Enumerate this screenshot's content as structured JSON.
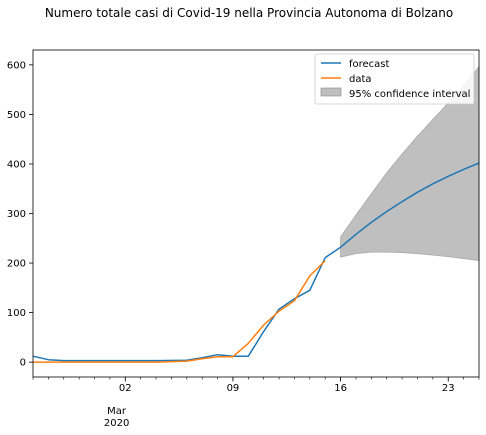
{
  "chart_data": {
    "type": "line",
    "title": "Numero totale casi di Covid-19 nella Provincia Autonoma di Bolzano",
    "xlabel": "",
    "ylabel": "",
    "x_range": [
      "2020-02-25",
      "2020-03-25"
    ],
    "ylim": [
      -30,
      630
    ],
    "y_ticks": [
      0,
      100,
      200,
      300,
      400,
      500,
      600
    ],
    "x_ticks": [
      {
        "date": "2020-03-02",
        "label": "02"
      },
      {
        "date": "2020-03-09",
        "label": "09"
      },
      {
        "date": "2020-03-16",
        "label": "16"
      },
      {
        "date": "2020-03-23",
        "label": "23"
      }
    ],
    "x_month_label": "Mar",
    "x_year_label": "2020",
    "grid": false,
    "legend_position": "top-right",
    "series": [
      {
        "name": "forecast",
        "color": "#1f77b4",
        "points": [
          {
            "date": "2020-02-25",
            "y": 12
          },
          {
            "date": "2020-02-26",
            "y": 5
          },
          {
            "date": "2020-02-27",
            "y": 3
          },
          {
            "date": "2020-02-28",
            "y": 3
          },
          {
            "date": "2020-03-01",
            "y": 3
          },
          {
            "date": "2020-03-04",
            "y": 3
          },
          {
            "date": "2020-03-06",
            "y": 4
          },
          {
            "date": "2020-03-07",
            "y": 9
          },
          {
            "date": "2020-03-08",
            "y": 15
          },
          {
            "date": "2020-03-09",
            "y": 12
          },
          {
            "date": "2020-03-10",
            "y": 12
          },
          {
            "date": "2020-03-11",
            "y": 62
          },
          {
            "date": "2020-03-12",
            "y": 107
          },
          {
            "date": "2020-03-13",
            "y": 128
          },
          {
            "date": "2020-03-14",
            "y": 145
          },
          {
            "date": "2020-03-15",
            "y": 211
          },
          {
            "date": "2020-03-16",
            "y": 232
          },
          {
            "date": "2020-03-17",
            "y": 258
          },
          {
            "date": "2020-03-18",
            "y": 282
          },
          {
            "date": "2020-03-19",
            "y": 304
          },
          {
            "date": "2020-03-20",
            "y": 324
          },
          {
            "date": "2020-03-21",
            "y": 343
          },
          {
            "date": "2020-03-22",
            "y": 360
          },
          {
            "date": "2020-03-23",
            "y": 375
          },
          {
            "date": "2020-03-24",
            "y": 389
          },
          {
            "date": "2020-03-25",
            "y": 402
          }
        ]
      },
      {
        "name": "data",
        "color": "#ff7f0e",
        "points": [
          {
            "date": "2020-02-25",
            "y": 0
          },
          {
            "date": "2020-02-28",
            "y": 0
          },
          {
            "date": "2020-03-01",
            "y": 0
          },
          {
            "date": "2020-03-04",
            "y": 0
          },
          {
            "date": "2020-03-06",
            "y": 2
          },
          {
            "date": "2020-03-07",
            "y": 7
          },
          {
            "date": "2020-03-08",
            "y": 11
          },
          {
            "date": "2020-03-09",
            "y": 11
          },
          {
            "date": "2020-03-10",
            "y": 38
          },
          {
            "date": "2020-03-11",
            "y": 75
          },
          {
            "date": "2020-03-12",
            "y": 103
          },
          {
            "date": "2020-03-13",
            "y": 124
          },
          {
            "date": "2020-03-14",
            "y": 174
          },
          {
            "date": "2020-03-15",
            "y": 205
          }
        ]
      }
    ],
    "confidence_interval": {
      "name": "95% confidence interval",
      "color": "#bfbfbf",
      "points": [
        {
          "date": "2020-03-16",
          "lower": 212,
          "upper": 253
        },
        {
          "date": "2020-03-17",
          "lower": 219,
          "upper": 297
        },
        {
          "date": "2020-03-18",
          "lower": 222,
          "upper": 340
        },
        {
          "date": "2020-03-19",
          "lower": 222,
          "upper": 382
        },
        {
          "date": "2020-03-20",
          "lower": 221,
          "upper": 420
        },
        {
          "date": "2020-03-21",
          "lower": 219,
          "upper": 456
        },
        {
          "date": "2020-03-22",
          "lower": 216,
          "upper": 490
        },
        {
          "date": "2020-03-23",
          "lower": 213,
          "upper": 523
        },
        {
          "date": "2020-03-24",
          "lower": 209,
          "upper": 558
        },
        {
          "date": "2020-03-25",
          "lower": 205,
          "upper": 596
        }
      ]
    }
  }
}
